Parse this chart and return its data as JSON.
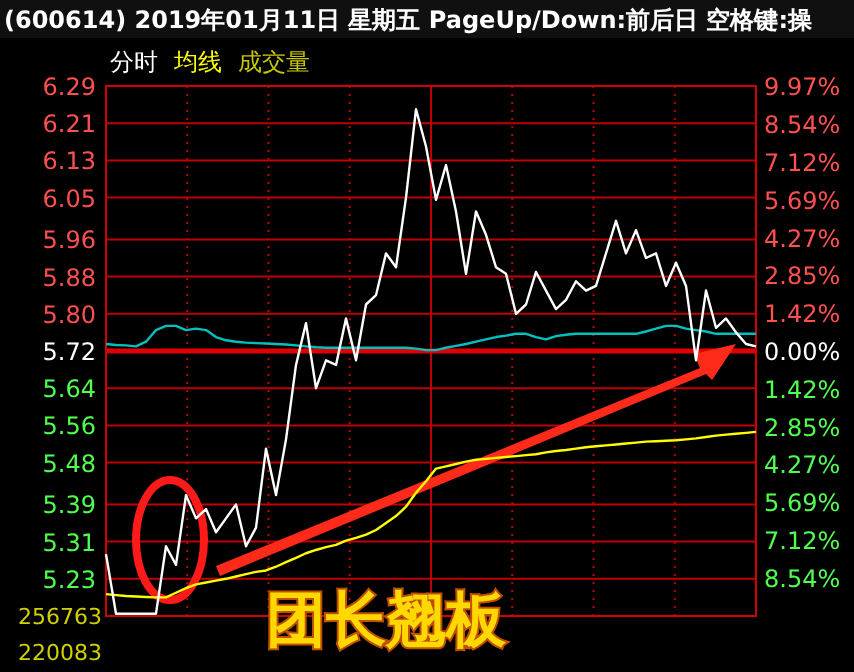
{
  "chart_data": {
    "type": "line",
    "title": "(600614) 2019年01月11日 星期五 PageUp/Down:前后日 空格键:操",
    "categories": [
      null,
      null,
      null,
      null,
      null,
      null,
      null,
      null,
      null,
      null,
      null,
      null,
      null,
      null,
      null,
      null,
      null,
      null,
      null,
      null,
      null,
      null,
      null,
      null,
      null,
      null,
      null,
      null,
      null,
      null,
      null,
      null,
      null,
      null,
      null,
      null,
      null,
      null,
      null,
      null,
      null,
      null,
      null,
      null,
      null,
      null,
      null,
      null,
      null,
      null,
      null,
      null,
      null,
      null,
      null,
      null,
      null,
      null,
      null,
      null,
      null,
      null,
      null,
      null,
      null,
      null
    ],
    "series": [
      {
        "color": "#00c0c0",
        "values": [
          5.735,
          5.733,
          5.732,
          5.73,
          5.74,
          5.765,
          5.774,
          5.774,
          5.765,
          5.768,
          5.765,
          5.75,
          5.743,
          5.74,
          5.738,
          5.737,
          5.736,
          5.735,
          5.734,
          5.732,
          5.73,
          5.728,
          5.727,
          5.727,
          5.727,
          5.727,
          5.727,
          5.727,
          5.727,
          5.727,
          5.727,
          5.725,
          5.722,
          5.722,
          5.727,
          5.731,
          5.735,
          5.74,
          5.745,
          5.75,
          5.753,
          5.757,
          5.757,
          5.75,
          5.745,
          5.752,
          5.755,
          5.757,
          5.757,
          5.757,
          5.757,
          5.757,
          5.757,
          5.757,
          5.762,
          5.768,
          5.774,
          5.774,
          5.768,
          5.765,
          5.762,
          5.757,
          5.757,
          5.757,
          5.757,
          5.757
        ]
      },
      {
        "name": "均线",
        "color": "#ffff00",
        "values": [
          5.197,
          5.195,
          5.193,
          5.192,
          5.191,
          5.19,
          5.19,
          5.2,
          5.21,
          5.218,
          5.222,
          5.226,
          5.23,
          5.235,
          5.24,
          5.245,
          5.248,
          5.256,
          5.266,
          5.275,
          5.285,
          5.292,
          5.298,
          5.303,
          5.312,
          5.318,
          5.325,
          5.335,
          5.35,
          5.365,
          5.385,
          5.415,
          5.44,
          5.467,
          5.472,
          5.477,
          5.482,
          5.486,
          5.488,
          5.49,
          5.492,
          5.494,
          5.496,
          5.498,
          5.502,
          5.505,
          5.507,
          5.51,
          5.513,
          5.515,
          5.517,
          5.519,
          5.521,
          5.523,
          5.525,
          5.526,
          5.527,
          5.528,
          5.53,
          5.532,
          5.535,
          5.538,
          5.54,
          5.542,
          5.544,
          5.546
        ]
      },
      {
        "name": "分时",
        "color": "#ffffff",
        "values": [
          5.283,
          5.155,
          5.155,
          5.155,
          5.155,
          5.155,
          5.3,
          5.26,
          5.41,
          5.36,
          5.38,
          5.33,
          5.36,
          5.39,
          5.3,
          5.34,
          5.51,
          5.41,
          5.53,
          5.69,
          5.78,
          5.64,
          5.7,
          5.69,
          5.79,
          5.7,
          5.82,
          5.84,
          5.93,
          5.9,
          6.05,
          6.24,
          6.16,
          6.045,
          6.12,
          6.02,
          5.886,
          6.02,
          5.97,
          5.9,
          5.886,
          5.8,
          5.82,
          5.89,
          5.85,
          5.81,
          5.83,
          5.87,
          5.85,
          5.86,
          5.93,
          6.0,
          5.93,
          5.98,
          5.92,
          5.93,
          5.86,
          5.91,
          5.86,
          5.7,
          5.85,
          5.77,
          5.79,
          5.76,
          5.735,
          5.73
        ]
      }
    ],
    "ylim": [
      5.15,
      6.29
    ],
    "yticks": [
      6.29,
      6.21,
      6.13,
      6.05,
      5.96,
      5.88,
      {
        "value": 5.8,
        "label": "5.80"
      },
      5.72,
      5.64,
      5.56,
      5.48,
      5.39,
      5.31,
      5.23
    ],
    "y2lim": [
      -9.97,
      9.97
    ],
    "y2ticks": [
      {
        "value": 9.97,
        "label": "9.97%"
      },
      {
        "value": 8.54,
        "label": "8.54%"
      },
      {
        "value": 7.12,
        "label": "7.12%"
      },
      {
        "value": 5.69,
        "label": "5.69%"
      },
      {
        "value": 4.27,
        "label": "4.27%"
      },
      {
        "value": 2.85,
        "label": "2.85%"
      },
      {
        "value": 1.42,
        "label": "1.42%"
      },
      {
        "value": 0,
        "label": "0.00%"
      },
      {
        "value": -1.42,
        "label": "1.42%"
      },
      {
        "value": -2.85,
        "label": "2.85%"
      },
      {
        "value": -4.27,
        "label": "4.27%"
      },
      {
        "value": -5.69,
        "label": "5.69%"
      },
      {
        "value": -7.12,
        "label": "7.12%"
      },
      {
        "value": -8.54,
        "label": "8.54%"
      }
    ],
    "ref_lines": [
      {
        "axis": "y",
        "value": 5.72,
        "color": "#e00000"
      }
    ],
    "grid": true,
    "legend": "top left",
    "annotations": [
      "成交量",
      "团长翘板",
      "256763",
      "220083"
    ]
  }
}
